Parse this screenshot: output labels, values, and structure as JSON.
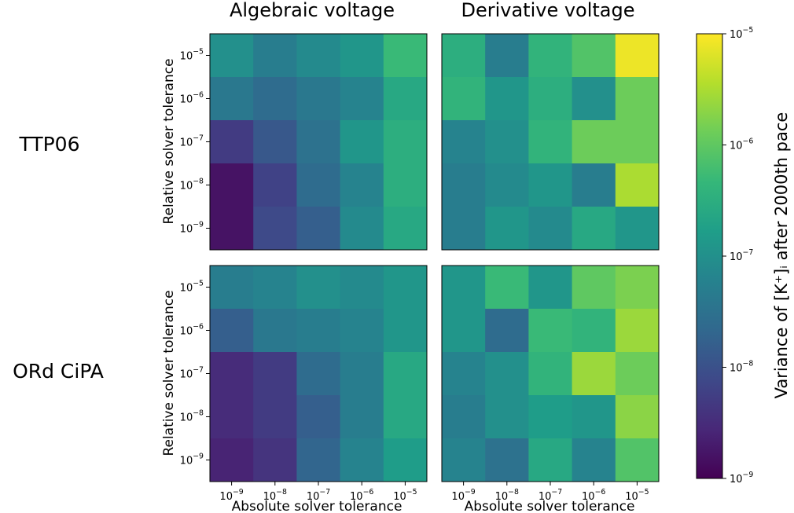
{
  "chart_data": {
    "type": "heatmap",
    "column_titles": [
      "Algebraic voltage",
      "Derivative voltage"
    ],
    "row_titles": [
      "TTP06",
      "ORd CiPA"
    ],
    "xlabel": "Absolute solver tolerance",
    "ylabel": "Relative solver tolerance",
    "x_ticks": [
      "10^-9",
      "10^-8",
      "10^-7",
      "10^-6",
      "10^-5"
    ],
    "y_ticks": [
      "10^-5",
      "10^-6",
      "10^-7",
      "10^-8",
      "10^-9"
    ],
    "colorbar": {
      "label": "Variance of [K⁺]ᵢ after 2000th pace",
      "scale": "log",
      "min_exponent": -9,
      "max_exponent": -5,
      "tick_labels": [
        "10^-5",
        "10^-6",
        "10^-7",
        "10^-8",
        "10^-9"
      ],
      "colormap": "viridis"
    },
    "panels": [
      {
        "model": "TTP06",
        "mode": "Algebraic voltage",
        "log10_variance": [
          [
            -7.0,
            -7.3,
            -7.1,
            -6.9,
            -6.3
          ],
          [
            -7.4,
            -7.6,
            -7.4,
            -7.2,
            -6.6
          ],
          [
            -8.3,
            -7.9,
            -7.5,
            -6.9,
            -6.5
          ],
          [
            -8.8,
            -8.2,
            -7.6,
            -7.2,
            -6.5
          ],
          [
            -8.8,
            -8.1,
            -7.8,
            -7.1,
            -6.6
          ]
        ]
      },
      {
        "model": "TTP06",
        "mode": "Derivative voltage",
        "log10_variance": [
          [
            -6.5,
            -7.3,
            -6.4,
            -6.1,
            -5.1
          ],
          [
            -6.4,
            -6.9,
            -6.5,
            -7.0,
            -5.9
          ],
          [
            -7.2,
            -7.0,
            -6.4,
            -5.9,
            -5.9
          ],
          [
            -7.3,
            -7.1,
            -6.9,
            -7.3,
            -5.5
          ],
          [
            -7.3,
            -6.9,
            -7.1,
            -6.6,
            -6.9
          ]
        ]
      },
      {
        "model": "ORd CiPA",
        "mode": "Algebraic voltage",
        "log10_variance": [
          [
            -7.3,
            -7.2,
            -7.0,
            -7.1,
            -6.9
          ],
          [
            -7.8,
            -7.4,
            -7.3,
            -7.2,
            -6.9
          ],
          [
            -8.5,
            -8.3,
            -7.6,
            -7.3,
            -6.6
          ],
          [
            -8.5,
            -8.3,
            -7.8,
            -7.3,
            -6.6
          ],
          [
            -8.6,
            -8.4,
            -7.7,
            -7.2,
            -6.8
          ]
        ]
      },
      {
        "model": "ORd CiPA",
        "mode": "Derivative voltage",
        "log10_variance": [
          [
            -6.9,
            -6.3,
            -6.9,
            -6.0,
            -5.8
          ],
          [
            -6.9,
            -7.6,
            -6.3,
            -6.4,
            -5.6
          ],
          [
            -7.2,
            -7.0,
            -6.4,
            -5.6,
            -5.9
          ],
          [
            -7.3,
            -7.0,
            -6.8,
            -6.9,
            -5.7
          ],
          [
            -7.2,
            -7.5,
            -6.6,
            -7.2,
            -6.1
          ]
        ]
      }
    ]
  }
}
